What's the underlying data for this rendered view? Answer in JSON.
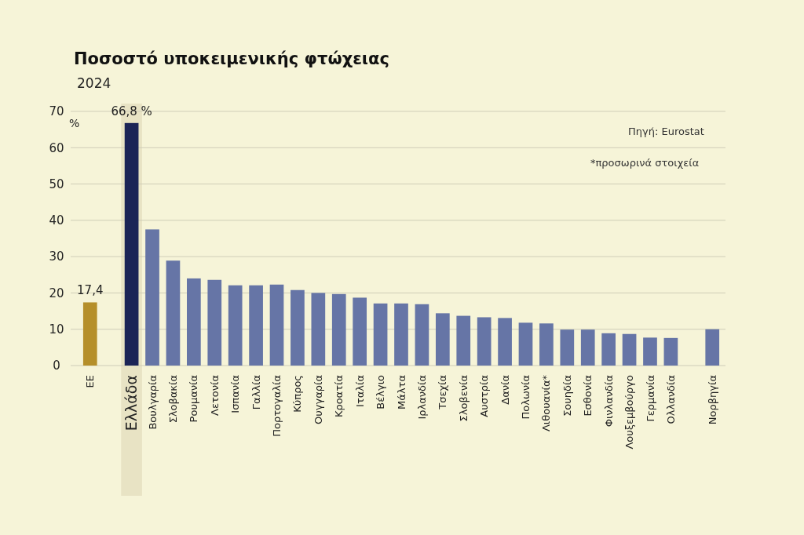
{
  "chart_data": {
    "type": "bar",
    "title": "Ποσοστό υποκειμενικής φτώχειας",
    "subtitle": "2024",
    "ylabel": "%",
    "categories": [
      "ΕΕ",
      null,
      "Ελλάδα",
      "Βουλγαρία",
      "Σλοβακία",
      "Ρουμανία",
      "Λετονία",
      "Ισπανία",
      "Γαλλία",
      "Πορτογαλία",
      "Κύπρος",
      "Ουγγαρία",
      "Κροατία",
      "Ιταλία",
      "Βέλγιο",
      "Μάλτα",
      "Ιρλανδία",
      "Τσεχία",
      "Σλοβενία",
      "Αυστρία",
      "Δανία",
      "Πολωνία",
      "Λιθουανία*",
      "Σουηδία",
      "Εσθονία",
      "Φινλανδία",
      "Λουξεμβούργο",
      "Γερμανία",
      "Ολλανδία",
      null,
      "Νορβηγία"
    ],
    "values": [
      17.4,
      null,
      66.8,
      37.5,
      28.9,
      24.0,
      23.6,
      22.1,
      22.1,
      22.3,
      20.8,
      20.0,
      19.7,
      18.7,
      17.1,
      17.1,
      16.9,
      14.4,
      13.7,
      13.3,
      13.1,
      11.8,
      11.6,
      9.9,
      9.9,
      8.9,
      8.7,
      7.7,
      7.6,
      null,
      10.0
    ],
    "colors": [
      "#b58f2a",
      null,
      "#1b2456",
      "#6675a6",
      "#6675a6",
      "#6675a6",
      "#6675a6",
      "#6675a6",
      "#6675a6",
      "#6675a6",
      "#6675a6",
      "#6675a6",
      "#6675a6",
      "#6675a6",
      "#6675a6",
      "#6675a6",
      "#6675a6",
      "#6675a6",
      "#6675a6",
      "#6675a6",
      "#6675a6",
      "#6675a6",
      "#6675a6",
      "#6675a6",
      "#6675a6",
      "#6675a6",
      "#6675a6",
      "#6675a6",
      "#6675a6",
      null,
      "#6675a6"
    ],
    "value_labels": [
      "17,4",
      null,
      "66,8 %",
      null,
      null,
      null,
      null,
      null,
      null,
      null,
      null,
      null,
      null,
      null,
      null,
      null,
      null,
      null,
      null,
      null,
      null,
      null,
      null,
      null,
      null,
      null,
      null,
      null,
      null,
      null,
      null
    ],
    "ylim": [
      0,
      70
    ],
    "yticks": [
      0,
      10,
      20,
      30,
      40,
      50,
      60,
      70
    ],
    "grid": "y",
    "bands": [
      {
        "axis": "x",
        "from": "Ελλάδα",
        "to": "Ελλάδα",
        "color": "#e8e3c4"
      }
    ],
    "annotations": [
      "Πηγή: Eurostat",
      "*προσωρινά στοιχεία"
    ]
  }
}
